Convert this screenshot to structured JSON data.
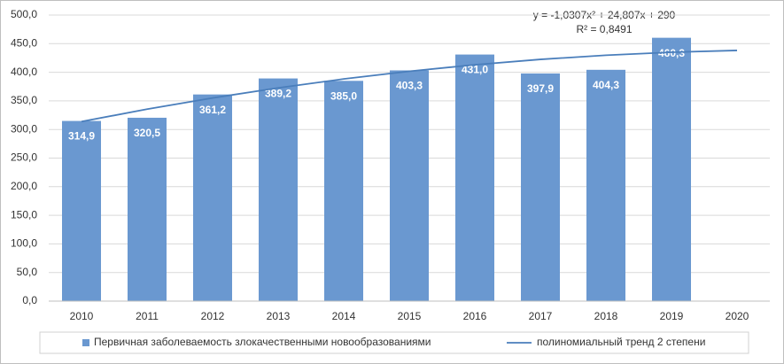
{
  "chart_data": {
    "type": "bar",
    "categories": [
      "2010",
      "2011",
      "2012",
      "2013",
      "2014",
      "2015",
      "2016",
      "2017",
      "2018",
      "2019",
      "2020"
    ],
    "series": [
      {
        "name": "Первичная заболеваемость злокачественными новообразованиями",
        "type": "bar",
        "color": "#6a98d0",
        "values": [
          314.9,
          320.5,
          361.2,
          389.2,
          385.0,
          403.3,
          431.0,
          397.9,
          404.3,
          460.3,
          null
        ],
        "value_labels": [
          "314,9",
          "320,5",
          "361,2",
          "389,2",
          "385,0",
          "403,3",
          "431,0",
          "397,9",
          "404,3",
          "460,3",
          null
        ]
      },
      {
        "name": "полиномиальный тренд 2 степени",
        "type": "line",
        "color": "#4a7ebb",
        "values": [
          313.8,
          335.5,
          355.1,
          372.7,
          388.3,
          401.7,
          413.1,
          422.5,
          429.8,
          435.0,
          438.2
        ]
      }
    ],
    "annotations": [
      "y = -1,0307x² + 24,807x + 290",
      "R² = 0,8491"
    ],
    "ylim": [
      0,
      500
    ],
    "yticks": [
      {
        "value": 0,
        "label": "0,0"
      },
      {
        "value": 50,
        "label": "50,0"
      },
      {
        "value": 100,
        "label": "100,0"
      },
      {
        "value": 150,
        "label": "150,0"
      },
      {
        "value": 200,
        "label": "200,0"
      },
      {
        "value": 250,
        "label": "250,0"
      },
      {
        "value": 300,
        "label": "300,0"
      },
      {
        "value": 350,
        "label": "350,0"
      },
      {
        "value": 400,
        "label": "400,0"
      },
      {
        "value": 450,
        "label": "450,0"
      },
      {
        "value": 500,
        "label": "500,0"
      }
    ],
    "grid": true,
    "legend": "bottom"
  }
}
